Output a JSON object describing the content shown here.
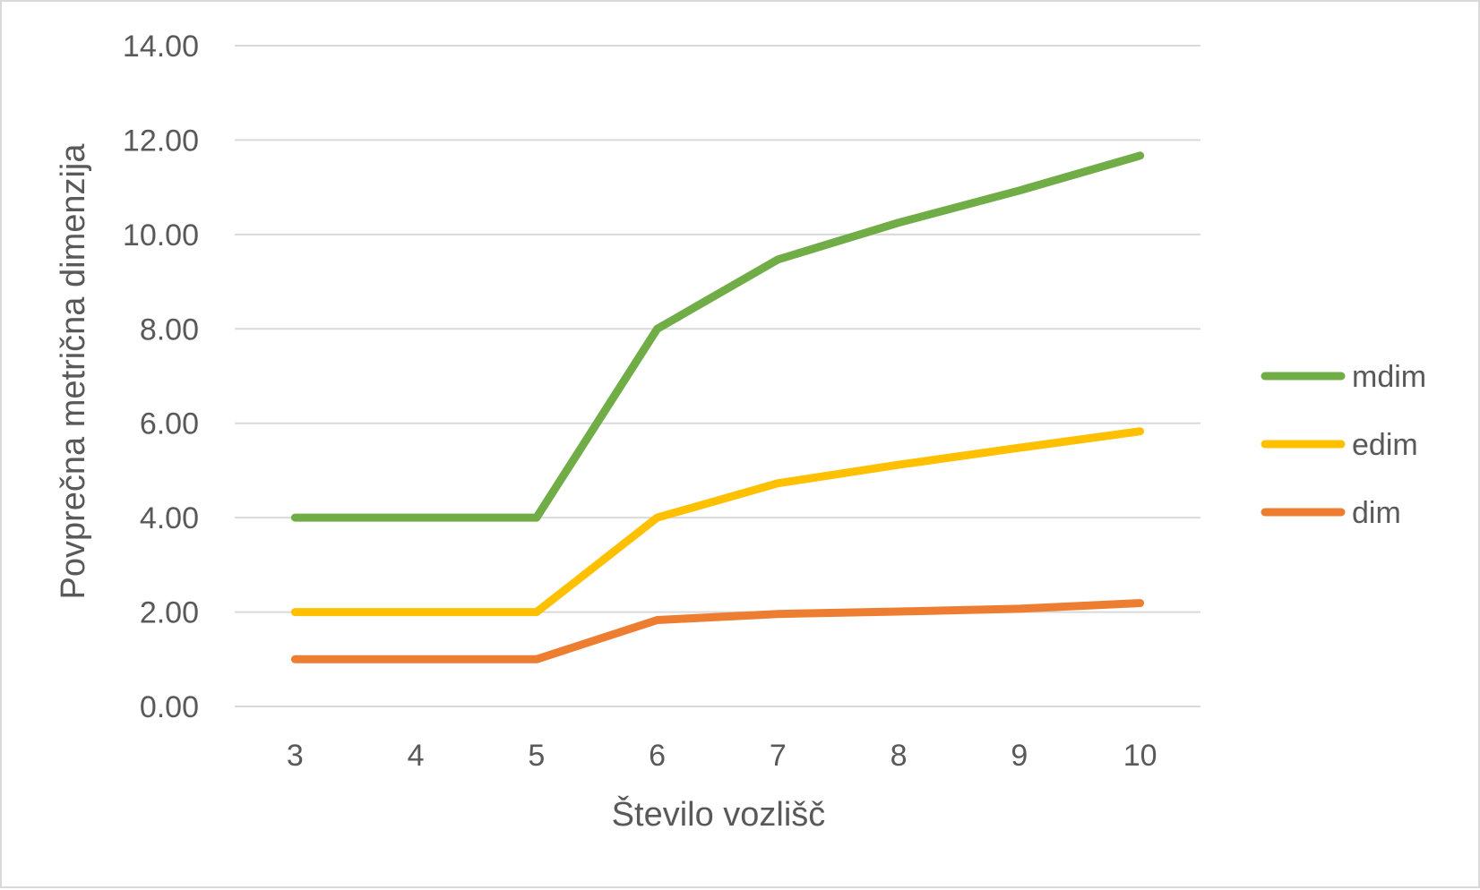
{
  "chart_data": {
    "type": "line",
    "categories": [
      "3",
      "4",
      "5",
      "6",
      "7",
      "8",
      "9",
      "10"
    ],
    "series": [
      {
        "name": "mdim",
        "color": "#70ad47",
        "values": [
          4.0,
          4.0,
          4.0,
          8.0,
          9.47,
          10.25,
          10.93,
          11.67
        ]
      },
      {
        "name": "edim",
        "color": "#ffc000",
        "values": [
          2.0,
          2.0,
          2.0,
          4.0,
          4.73,
          5.12,
          5.48,
          5.83
        ]
      },
      {
        "name": "dim",
        "color": "#ed7d31",
        "values": [
          1.0,
          1.0,
          1.0,
          1.83,
          1.96,
          2.01,
          2.07,
          2.19
        ]
      }
    ],
    "title": "",
    "xlabel": "Število vozlišč",
    "ylabel": "Povprečna metrična dimenzija",
    "ylim": [
      0,
      14
    ],
    "yticks": [
      "0.00",
      "2.00",
      "4.00",
      "6.00",
      "8.00",
      "10.00",
      "12.00",
      "14.00"
    ],
    "grid": true,
    "legend_position": "right"
  }
}
